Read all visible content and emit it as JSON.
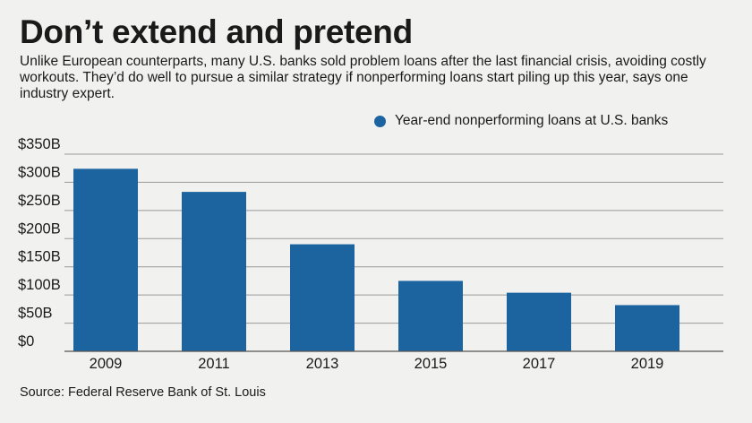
{
  "title": "Don’t extend and pretend",
  "subtitle": "Unlike European counterparts, many U.S. banks sold problem loans after the last financial crisis, avoiding costly workouts. They’d do well to pursue a similar strategy if nonperforming loans start piling up this year, says one industry expert.",
  "source": "Source: Federal Reserve Bank of St. Louis",
  "colors": {
    "bar": "#1b64a0",
    "grid": "#9a9a9a",
    "background": "#f1f1ef"
  },
  "chart_data": {
    "type": "bar",
    "categories": [
      "2009",
      "2011",
      "2013",
      "2015",
      "2017",
      "2019"
    ],
    "series": [
      {
        "name": "Year-end nonperforming loans at U.S. banks",
        "values": [
          324,
          283,
          190,
          125,
          104,
          82
        ]
      }
    ],
    "ylim": [
      0,
      350
    ],
    "yticks": [
      0,
      50,
      100,
      150,
      200,
      250,
      300,
      350
    ],
    "ytick_labels": [
      "$0",
      "$50B",
      "$100B",
      "$150B",
      "$200B",
      "$250B",
      "$300B",
      "$350B"
    ],
    "grid": true,
    "legend_position": "top-right"
  }
}
